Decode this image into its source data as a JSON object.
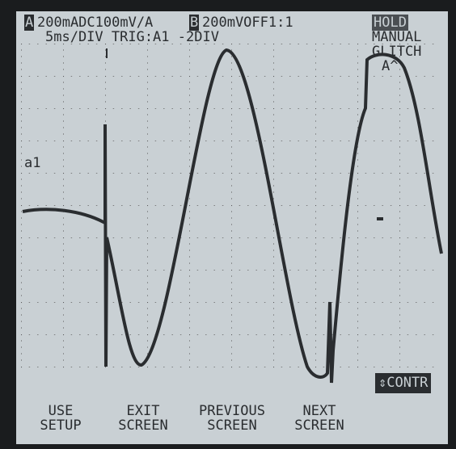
{
  "header": {
    "channel_a_badge": "A",
    "channel_a": "200mADC100mV/A",
    "channel_b_badge": "B",
    "channel_b": "200mVOFF1:1",
    "status": "HOLD",
    "timebase": "5ms/DIV TRIG:A1 -2DIV",
    "mode": [
      "MANUAL",
      "GLITCH",
      "A^"
    ]
  },
  "trace_label": "a1",
  "contrast_button": "⇕CONTR",
  "softkeys": [
    [
      "USE",
      "SETUP"
    ],
    [
      "EXIT",
      "SCREEN"
    ],
    [
      "PREVIOUS",
      "SCREEN"
    ],
    [
      "NEXT",
      "SCREEN"
    ]
  ]
}
